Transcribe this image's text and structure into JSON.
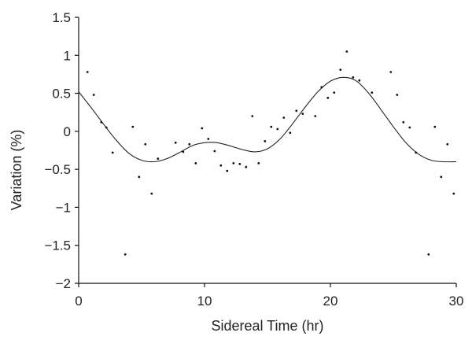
{
  "chart_data": {
    "type": "scatter",
    "title": "",
    "xlabel": "Sidereal Time (hr)",
    "ylabel": "Variation (%)",
    "xlim": [
      0,
      30
    ],
    "ylim": [
      -2,
      1.5
    ],
    "xticks": [
      0,
      10,
      20,
      30
    ],
    "yticks": [
      -2,
      -1.5,
      -1,
      -0.5,
      0,
      0.5,
      1,
      1.5
    ],
    "xtick_labels": [
      "0",
      "10",
      "20",
      "30"
    ],
    "ytick_labels": [
      "−2",
      "−1.5",
      "−1",
      "−0.5",
      "0",
      "0.5",
      "1",
      "1.5"
    ],
    "grid": false,
    "legend": "none",
    "series": [
      {
        "kind": "points",
        "color": "#111111",
        "x": [
          0.7,
          1.2,
          1.8,
          2.2,
          2.7,
          3.7,
          4.3,
          4.8,
          5.3,
          5.8,
          6.3,
          7.7,
          8.3,
          8.8,
          9.3,
          9.8,
          10.3,
          10.8,
          11.3,
          11.8,
          12.3,
          12.8,
          13.3,
          13.8,
          14.3,
          14.8,
          15.3,
          15.8,
          16.3,
          16.8,
          17.3,
          17.8,
          18.8,
          19.3,
          19.8,
          20.3,
          20.8,
          21.3,
          21.8,
          22.3,
          23.3,
          24.8,
          25.3,
          25.8,
          26.3,
          26.8,
          27.8,
          28.3,
          28.8,
          29.3,
          29.8
        ],
        "y": [
          0.78,
          0.48,
          0.12,
          0.05,
          -0.28,
          -1.62,
          0.06,
          -0.6,
          -0.17,
          -0.82,
          -0.36,
          -0.15,
          -0.27,
          -0.17,
          -0.42,
          0.04,
          -0.1,
          -0.26,
          -0.45,
          -0.52,
          -0.42,
          -0.43,
          -0.47,
          0.2,
          -0.42,
          -0.13,
          0.06,
          0.03,
          0.18,
          -0.02,
          0.27,
          0.23,
          0.2,
          0.58,
          0.44,
          0.51,
          0.81,
          1.05,
          0.71,
          0.67,
          0.51,
          0.78,
          0.48,
          0.12,
          0.05,
          -0.28,
          -1.62,
          0.06,
          -0.6,
          -0.17,
          -0.82
        ]
      },
      {
        "kind": "fit-curve",
        "color": "#222222",
        "x": [
          0,
          1,
          2,
          3,
          4,
          5,
          6,
          7,
          8,
          9,
          10,
          11,
          12,
          13,
          14,
          15,
          16,
          17,
          18,
          19,
          20,
          21,
          22,
          23,
          24,
          25,
          26,
          27,
          28,
          29,
          30
        ],
        "y": [
          0.52,
          0.31,
          0.09,
          -0.12,
          -0.29,
          -0.38,
          -0.4,
          -0.36,
          -0.28,
          -0.19,
          -0.15,
          -0.15,
          -0.19,
          -0.24,
          -0.27,
          -0.23,
          -0.1,
          0.1,
          0.32,
          0.52,
          0.66,
          0.71,
          0.67,
          0.51,
          0.29,
          0.06,
          -0.15,
          -0.3,
          -0.38,
          -0.4,
          -0.4
        ]
      }
    ]
  }
}
